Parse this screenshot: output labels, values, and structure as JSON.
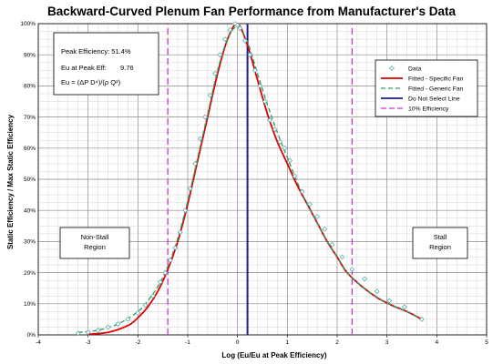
{
  "chart_data": {
    "type": "line",
    "title": "Backward-Curved Plenum Fan Performance from Manufacturer's Data",
    "xlabel": "Log (Eu/Eu at Peak Efficiency)",
    "ylabel": "Static Efficiency / Max Static Efficiency",
    "xlim": [
      -4,
      5
    ],
    "ylim": [
      0,
      1
    ],
    "x_ticks": [
      "-4",
      "-3",
      "-2",
      "-1",
      "0",
      "1",
      "2",
      "3",
      "4",
      "5"
    ],
    "y_ticks": [
      "0%",
      "10%",
      "20%",
      "30%",
      "40%",
      "50%",
      "60%",
      "70%",
      "80%",
      "90%",
      "100%"
    ],
    "grid": true,
    "legend_position": "right",
    "colors": {
      "data": "#4aa3a3",
      "fitted_specific": "#e00000",
      "fitted_generic": "#2e9a60",
      "do_not_select": "#1c1c9c",
      "ten_percent": "#cc33cc"
    },
    "series": [
      {
        "name": "Data",
        "style": "markers",
        "x": [
          -3.2,
          -3.0,
          -2.8,
          -2.6,
          -2.4,
          -2.2,
          -2.0,
          -1.85,
          -1.7,
          -1.55,
          -1.45,
          -1.35,
          -1.25,
          -1.15,
          -1.05,
          -0.95,
          -0.85,
          -0.75,
          -0.65,
          -0.55,
          -0.45,
          -0.35,
          -0.25,
          -0.15,
          -0.05,
          0.0,
          0.05,
          0.15,
          0.25,
          0.35,
          0.45,
          0.55,
          0.65,
          0.75,
          0.85,
          0.95,
          1.05,
          1.15,
          1.3,
          1.45,
          1.6,
          1.75,
          1.9,
          2.1,
          2.3,
          2.55,
          2.8,
          3.05,
          3.35,
          3.7
        ],
        "y": [
          0.005,
          0.008,
          0.015,
          0.025,
          0.035,
          0.05,
          0.07,
          0.095,
          0.125,
          0.17,
          0.2,
          0.24,
          0.28,
          0.33,
          0.4,
          0.47,
          0.55,
          0.63,
          0.7,
          0.77,
          0.84,
          0.9,
          0.95,
          0.98,
          1.0,
          0.995,
          0.985,
          0.945,
          0.9,
          0.85,
          0.8,
          0.75,
          0.69,
          0.66,
          0.62,
          0.6,
          0.56,
          0.51,
          0.46,
          0.42,
          0.38,
          0.34,
          0.29,
          0.25,
          0.21,
          0.18,
          0.14,
          0.11,
          0.09,
          0.05
        ]
      },
      {
        "name": "Fitted - Specific Fan",
        "style": "line",
        "x": [
          -3.0,
          -2.6,
          -2.2,
          -2.0,
          -1.8,
          -1.6,
          -1.4,
          -1.2,
          -1.0,
          -0.8,
          -0.6,
          -0.4,
          -0.2,
          0.0,
          0.2,
          0.4,
          0.6,
          0.8,
          1.0,
          1.2,
          1.4,
          1.6,
          1.8,
          2.0,
          2.2,
          2.5,
          2.8,
          3.1,
          3.4,
          3.7
        ],
        "y": [
          0.002,
          0.008,
          0.03,
          0.055,
          0.09,
          0.14,
          0.21,
          0.3,
          0.42,
          0.56,
          0.7,
          0.84,
          0.95,
          1.0,
          0.93,
          0.82,
          0.71,
          0.62,
          0.55,
          0.48,
          0.42,
          0.36,
          0.3,
          0.25,
          0.2,
          0.155,
          0.12,
          0.095,
          0.075,
          0.05
        ]
      },
      {
        "name": "Fitted - Generic Fan",
        "style": "dashed",
        "x": [
          -3.2,
          -2.8,
          -2.4,
          -2.0,
          -1.8,
          -1.6,
          -1.4,
          -1.2,
          -1.0,
          -0.8,
          -0.6,
          -0.4,
          -0.2,
          0.0,
          0.2,
          0.4,
          0.6,
          0.8,
          1.0,
          1.2,
          1.4,
          1.6,
          1.8,
          2.0,
          2.2,
          2.5,
          2.8,
          3.1,
          3.4,
          3.7
        ],
        "y": [
          0.008,
          0.015,
          0.035,
          0.075,
          0.11,
          0.155,
          0.22,
          0.31,
          0.43,
          0.57,
          0.71,
          0.85,
          0.95,
          0.99,
          0.94,
          0.84,
          0.74,
          0.65,
          0.57,
          0.49,
          0.42,
          0.36,
          0.3,
          0.25,
          0.2,
          0.155,
          0.12,
          0.095,
          0.075,
          0.05
        ]
      },
      {
        "name": "Do Not Select Line",
        "style": "vertical",
        "x": [
          0.2,
          0.2
        ],
        "y": [
          0,
          1
        ]
      },
      {
        "name": "10% Efficiency",
        "style": "vertical-dashed",
        "x_lines": [
          -1.4,
          2.3
        ],
        "y": [
          0,
          1
        ]
      }
    ],
    "annotations": {
      "peak_efficiency": "Peak Efficiency: 51.4%",
      "eu_at_peak": "Eu at Peak Eff:",
      "eu_at_peak_value": "9.76",
      "eu_formula": "Eu = (ΔP D⁴)/(ρ Q²)",
      "non_stall": [
        "Non-Stall",
        "Region"
      ],
      "stall": [
        "Stall",
        "Region"
      ]
    }
  }
}
